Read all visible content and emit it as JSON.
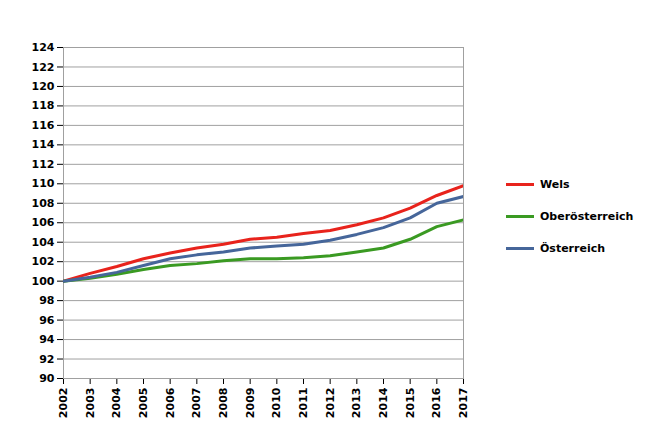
{
  "chart_data": {
    "type": "line",
    "x": [
      2002,
      2003,
      2004,
      2005,
      2006,
      2007,
      2008,
      2009,
      2010,
      2011,
      2012,
      2013,
      2014,
      2015,
      2016,
      2017
    ],
    "series": [
      {
        "name": "Wels",
        "color": "#e8231c",
        "values": [
          100,
          100.8,
          101.5,
          102.3,
          102.9,
          103.4,
          103.8,
          104.3,
          104.5,
          104.9,
          105.2,
          105.8,
          106.5,
          107.5,
          108.8,
          109.8
        ]
      },
      {
        "name": "Oberösterreich",
        "color": "#3a9a22",
        "values": [
          100,
          100.3,
          100.7,
          101.2,
          101.6,
          101.8,
          102.1,
          102.3,
          102.3,
          102.4,
          102.6,
          103.0,
          103.4,
          104.3,
          105.6,
          106.3
        ]
      },
      {
        "name": "Österreich",
        "color": "#46669a",
        "values": [
          100,
          100.4,
          100.9,
          101.6,
          102.3,
          102.7,
          103.0,
          103.4,
          103.6,
          103.8,
          104.2,
          104.8,
          105.5,
          106.5,
          108.0,
          108.7
        ]
      }
    ],
    "xlim": [
      2002,
      2017
    ],
    "xticks": [
      2002,
      2003,
      2004,
      2005,
      2006,
      2007,
      2008,
      2009,
      2010,
      2011,
      2012,
      2013,
      2014,
      2015,
      2016,
      2017
    ],
    "ylim": [
      90,
      124
    ],
    "yticks": [
      90,
      92,
      94,
      96,
      98,
      100,
      102,
      104,
      106,
      108,
      110,
      112,
      114,
      116,
      118,
      120,
      122,
      124
    ],
    "grid": true,
    "legend": "right",
    "marker": "none",
    "line_style": "solid"
  }
}
